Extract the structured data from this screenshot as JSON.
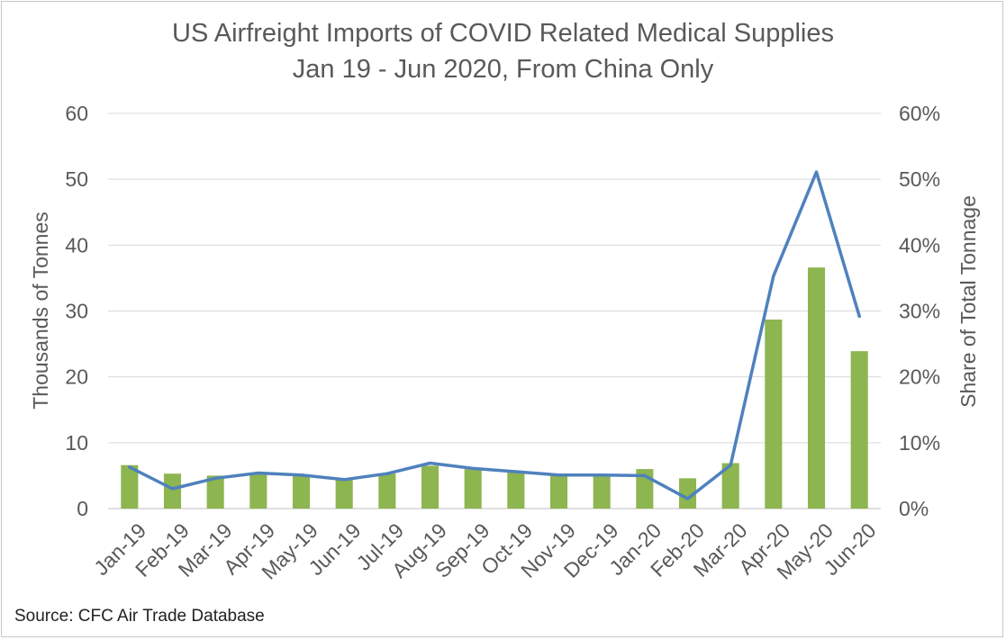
{
  "chart_data": {
    "type": "bar+line",
    "title": "US Airfreight Imports of COVID Related Medical Supplies",
    "subtitle": "Jan 19 - Jun 2020, From China Only",
    "categories": [
      "Jan-19",
      "Feb-19",
      "Mar-19",
      "Apr-19",
      "May-19",
      "Jun-19",
      "Jul-19",
      "Aug-19",
      "Sep-19",
      "Oct-19",
      "Nov-19",
      "Dec-19",
      "Jan-20",
      "Feb-20",
      "Mar-20",
      "Apr-20",
      "May-20",
      "Jun-20"
    ],
    "series": [
      {
        "type": "bar",
        "axis": "left",
        "color": "#8db550",
        "values": [
          6.6,
          5.3,
          5.0,
          5.3,
          5.0,
          4.4,
          5.3,
          6.5,
          6.0,
          5.5,
          5.0,
          5.0,
          6.0,
          4.6,
          6.9,
          28.7,
          36.6,
          23.9
        ]
      },
      {
        "type": "line",
        "axis": "right",
        "color": "#4f81bd",
        "values": [
          6.3,
          3.0,
          4.6,
          5.4,
          5.1,
          4.4,
          5.3,
          6.9,
          6.1,
          5.6,
          5.1,
          5.1,
          5.0,
          1.5,
          6.6,
          35.3,
          51.1,
          29.2
        ]
      }
    ],
    "ylabel": "Thousands of Tonnes",
    "y2label": "Share of Total Tonnage",
    "ylim": [
      0,
      60
    ],
    "y2lim": [
      0,
      60
    ],
    "yticks": [
      "0",
      "10",
      "20",
      "30",
      "40",
      "50",
      "60"
    ],
    "y2ticks": [
      "0%",
      "10%",
      "20%",
      "30%",
      "40%",
      "50%",
      "60%"
    ],
    "grid": true,
    "legend": "none"
  },
  "source": "Source: CFC Air Trade Database"
}
